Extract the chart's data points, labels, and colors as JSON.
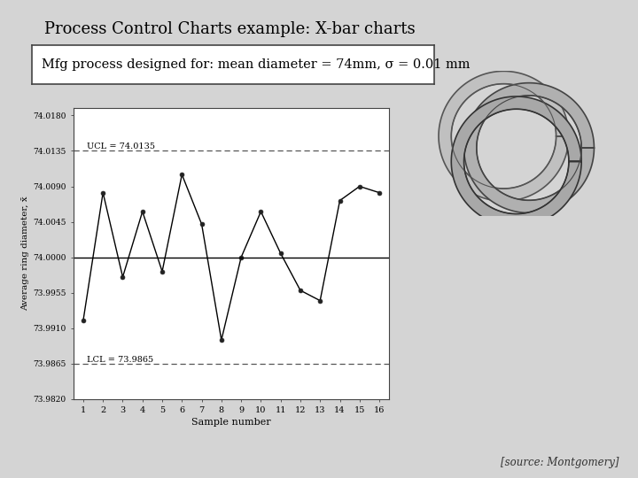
{
  "title": "Process Control Charts example: X-bar charts",
  "subtitle": "Mfg process designed for: mean diameter = 74mm, σ = 0.01 mm",
  "source": "[source: Montgomery]",
  "sample_numbers": [
    1,
    2,
    3,
    4,
    5,
    6,
    7,
    8,
    9,
    10,
    11,
    12,
    13,
    14,
    15,
    16
  ],
  "y_values": [
    73.992,
    74.0082,
    73.9975,
    74.0058,
    73.9982,
    74.0105,
    74.0042,
    73.9895,
    74.0,
    74.0058,
    74.0005,
    73.9958,
    73.9945,
    74.0072,
    74.009,
    74.0082
  ],
  "UCL": 74.0135,
  "LCL": 73.9865,
  "CL": 74.0,
  "ylim": [
    73.982,
    74.019
  ],
  "yticks": [
    73.982,
    73.9865,
    73.991,
    73.9955,
    74.0,
    74.0045,
    74.009,
    74.0135,
    74.018
  ],
  "xlabel": "Sample number",
  "ylabel": "Average ring diameter, x̄",
  "ucl_label": "UCL = 74.0135",
  "lcl_label": "LCL = 73.9865",
  "bg_color": "#d4d4d4",
  "plot_bg_color": "#ffffff",
  "line_color": "#000000",
  "control_line_color": "#555555",
  "title_color": "#000000",
  "accent_line_color": "#7aabaa"
}
